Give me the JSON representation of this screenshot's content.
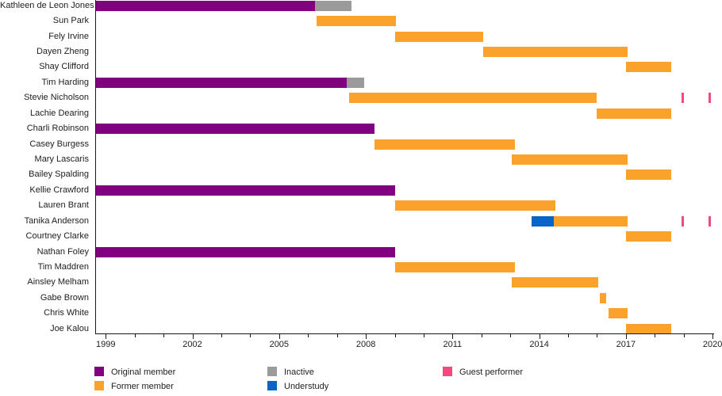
{
  "chart_data": {
    "type": "bar",
    "subtype": "gantt-member-timeline",
    "title": "",
    "xlabel": "",
    "ylabel": "",
    "grid": false,
    "legend_position": "bottom",
    "x_axis": {
      "range_years": [
        1998.63,
        2020.15
      ],
      "minor_tick_interval_years": 1,
      "major_tick_years": [
        1999,
        2002,
        2005,
        2008,
        2011,
        2014,
        2017,
        2020
      ],
      "major_tick_labels": [
        "1999",
        "2002",
        "2005",
        "2008",
        "2011",
        "2014",
        "2017",
        "2020"
      ]
    },
    "colors": {
      "original": "#800080",
      "former": "#faa22c",
      "inactive": "#9b9b9b",
      "understudy": "#0b63c5",
      "guest": "#f4497e"
    },
    "legend": [
      {
        "key": "original",
        "label": "Original member",
        "color": "#800080",
        "col": 0,
        "row": 0
      },
      {
        "key": "former",
        "label": "Former member",
        "color": "#faa22c",
        "col": 0,
        "row": 1
      },
      {
        "key": "inactive",
        "label": "Inactive",
        "color": "#9b9b9b",
        "col": 1,
        "row": 0
      },
      {
        "key": "understudy",
        "label": "Understudy",
        "color": "#0b63c5",
        "col": 1,
        "row": 1
      },
      {
        "key": "guest",
        "label": "Guest performer",
        "color": "#f4497e",
        "col": 2,
        "row": 0
      }
    ],
    "rows": [
      {
        "name": "Kathleen de Leon Jones",
        "segments": [
          {
            "type": "original",
            "start": 1998.63,
            "end": 2006.25
          },
          {
            "type": "inactive",
            "start": 2006.25,
            "end": 2007.5
          }
        ]
      },
      {
        "name": "Sun Park",
        "segments": [
          {
            "type": "former",
            "start": 2006.3,
            "end": 2009.05
          }
        ]
      },
      {
        "name": "Fely Irvine",
        "segments": [
          {
            "type": "former",
            "start": 2009.0,
            "end": 2012.05
          }
        ]
      },
      {
        "name": "Dayen Zheng",
        "segments": [
          {
            "type": "former",
            "start": 2012.05,
            "end": 2017.05
          }
        ]
      },
      {
        "name": "Shay Clifford",
        "segments": [
          {
            "type": "former",
            "start": 2017.0,
            "end": 2018.58
          }
        ]
      },
      {
        "name": "Tim Harding",
        "segments": [
          {
            "type": "original",
            "start": 1998.63,
            "end": 2007.35
          },
          {
            "type": "inactive",
            "start": 2007.35,
            "end": 2007.95
          }
        ]
      },
      {
        "name": "Stevie Nicholson",
        "segments": [
          {
            "type": "former",
            "start": 2007.43,
            "end": 2016.0
          },
          {
            "type": "guest",
            "year": 2018.96
          },
          {
            "type": "guest",
            "year": 2019.9
          }
        ]
      },
      {
        "name": "Lachie Dearing",
        "segments": [
          {
            "type": "former",
            "start": 2016.0,
            "end": 2018.58
          }
        ]
      },
      {
        "name": "Charli Robinson",
        "segments": [
          {
            "type": "original",
            "start": 1998.63,
            "end": 2008.3
          }
        ]
      },
      {
        "name": "Casey Burgess",
        "segments": [
          {
            "type": "former",
            "start": 2008.3,
            "end": 2013.15
          }
        ]
      },
      {
        "name": "Mary Lascaris",
        "segments": [
          {
            "type": "former",
            "start": 2013.05,
            "end": 2017.05
          }
        ]
      },
      {
        "name": "Bailey Spalding",
        "segments": [
          {
            "type": "former",
            "start": 2017.0,
            "end": 2018.58
          }
        ]
      },
      {
        "name": "Kellie Crawford",
        "segments": [
          {
            "type": "original",
            "start": 1998.63,
            "end": 2009.0
          }
        ]
      },
      {
        "name": "Lauren Brant",
        "segments": [
          {
            "type": "former",
            "start": 2009.0,
            "end": 2014.55
          }
        ]
      },
      {
        "name": "Tanika Anderson",
        "segments": [
          {
            "type": "understudy",
            "start": 2013.75,
            "end": 2014.5
          },
          {
            "type": "former",
            "start": 2014.5,
            "end": 2017.05
          },
          {
            "type": "guest",
            "year": 2018.96
          },
          {
            "type": "guest",
            "year": 2019.9
          }
        ]
      },
      {
        "name": "Courtney Clarke",
        "segments": [
          {
            "type": "former",
            "start": 2017.0,
            "end": 2018.58
          }
        ]
      },
      {
        "name": "Nathan Foley",
        "segments": [
          {
            "type": "original",
            "start": 1998.63,
            "end": 2009.0
          }
        ]
      },
      {
        "name": "Tim Maddren",
        "segments": [
          {
            "type": "former",
            "start": 2009.0,
            "end": 2013.15
          }
        ]
      },
      {
        "name": "Ainsley Melham",
        "segments": [
          {
            "type": "former",
            "start": 2013.05,
            "end": 2016.05
          }
        ]
      },
      {
        "name": "Gabe Brown",
        "segments": [
          {
            "type": "former",
            "start": 2016.1,
            "end": 2016.32
          }
        ]
      },
      {
        "name": "Chris White",
        "segments": [
          {
            "type": "former",
            "start": 2016.4,
            "end": 2017.05
          }
        ]
      },
      {
        "name": "Joe Kalou",
        "segments": [
          {
            "type": "former",
            "start": 2017.0,
            "end": 2018.58
          }
        ]
      }
    ]
  }
}
